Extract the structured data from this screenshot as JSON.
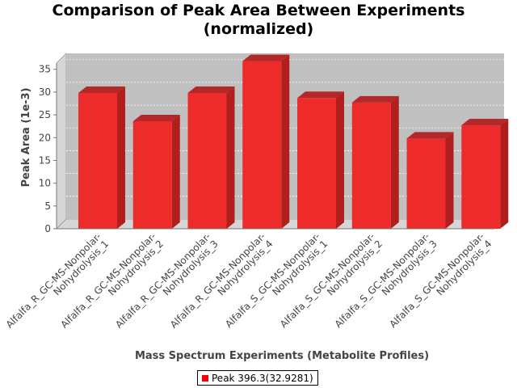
{
  "chart_data": {
    "type": "bar",
    "title": [
      "Comparison of Peak Area Between Experiments",
      "(normalized)"
    ],
    "xlabel": "Mass Spectrum Experiments (Metabolite Profiles)",
    "ylabel": "Peak Area (1e-3)",
    "ylim": [
      0,
      38.5
    ],
    "yticks": [
      0,
      5,
      10,
      15,
      20,
      25,
      30,
      35
    ],
    "categories": [
      [
        "Alfalfa_R_GC-MS-Nonpolar-",
        "Nohydrolysis_1"
      ],
      [
        "Alfalfa_R_GC-MS-Nonpolar-",
        "Nohydrolysis_2"
      ],
      [
        "Alfalfa_R_GC-MS-Nonpolar-",
        "Nohydrolysis_3"
      ],
      [
        "Alfalfa_R_GC-MS-Nonpolar-",
        "Nohydrolysis_4"
      ],
      [
        "Alfalfa_S_GC-MS-Nonpolar-",
        "Nohydrolysis_1"
      ],
      [
        "Alfalfa_S_GC-MS-Nonpolar-",
        "Nohydrolysis_2"
      ],
      [
        "Alfalfa_S_GC-MS-Nonpolar-",
        "Nohydrolysis_3"
      ],
      [
        "Alfalfa_S_GC-MS-Nonpolar-",
        "Nohydrolysis_4"
      ]
    ],
    "series": [
      {
        "name": "Peak 396.3(32.9281)",
        "values": [
          29.8,
          23.6,
          29.8,
          36.8,
          28.7,
          27.7,
          19.8,
          22.7
        ]
      }
    ],
    "grid": true,
    "legend": "bottom-center",
    "colors": {
      "bar": "#ee2b2b",
      "bar_top": "#b32828",
      "bar_side": "#b01e1e",
      "plot_bg": "#c0c0c0",
      "wall": "#d6d6d6"
    }
  }
}
